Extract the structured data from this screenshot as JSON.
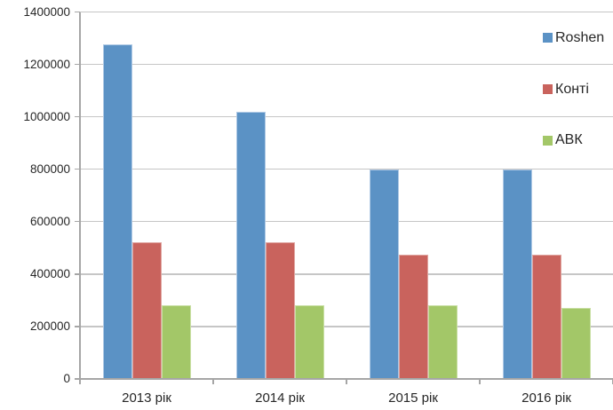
{
  "chart_data": {
    "type": "bar",
    "categories": [
      "2013 рік",
      "2014 рік",
      "2015 рік",
      "2016 рік"
    ],
    "series": [
      {
        "name": "Roshen",
        "color": "#5B92C5",
        "border_color": "#AFC9E5",
        "values": [
          1275000,
          1020000,
          800000,
          800000
        ]
      },
      {
        "name": "Конті",
        "color": "#C9635D",
        "border_color": "#E0A6A1",
        "values": [
          520000,
          520000,
          475000,
          475000
        ]
      },
      {
        "name": "АВК",
        "color": "#A3C768",
        "border_color": "#C9DFA4",
        "values": [
          280000,
          280000,
          280000,
          270000
        ]
      }
    ],
    "ylim": [
      0,
      1400000
    ],
    "ytick_step": 200000,
    "ytick_labels": [
      "0",
      "200000",
      "400000",
      "600000",
      "800000",
      "1000000",
      "1200000",
      "1400000"
    ],
    "xlabel": "",
    "ylabel": "",
    "grid": true,
    "legend_position": "top-right",
    "colors": {
      "gridline": "#C6C6C6",
      "axis": "#A6A6A6",
      "text": "#262626",
      "background": "#FFFFFF"
    }
  }
}
